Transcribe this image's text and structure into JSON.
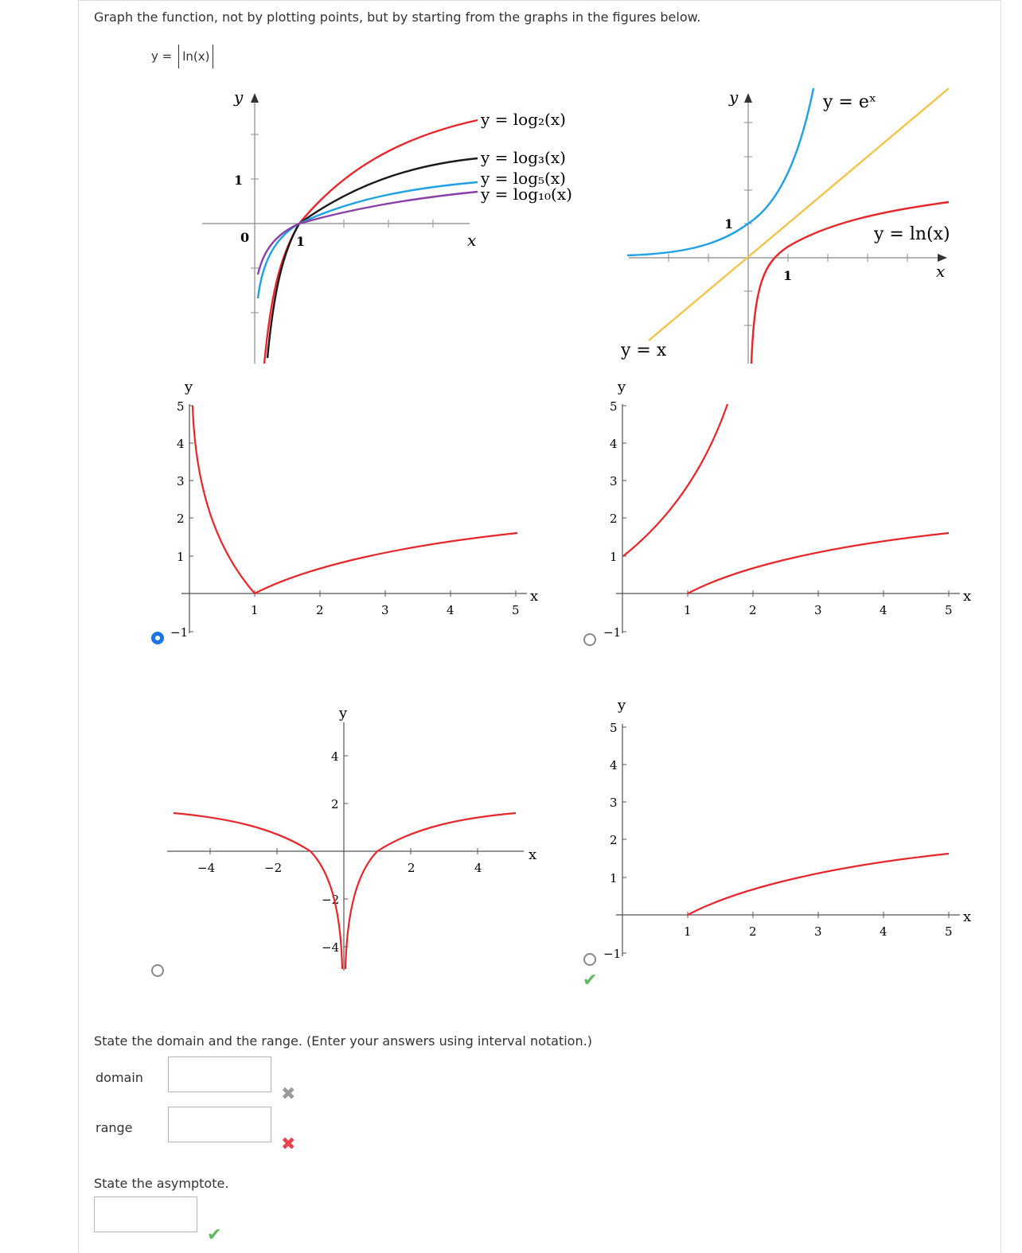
{
  "prompt": "Graph the function, not by plotting points, but by starting from the graphs in the figures below.",
  "function": {
    "lhs": "y =",
    "rhs": "ln(x)"
  },
  "ref_graphs": {
    "left": {
      "y_label": "y",
      "x_label": "x",
      "tick_one": "1",
      "tick_zero": "0",
      "tick_x_one": "1",
      "labels": [
        "y = log₂(x)",
        "y = log₃(x)",
        "y = log₅(x)",
        "y = log₁₀(x)"
      ],
      "colors": [
        "#e8262a",
        "#1a1a1a",
        "#1ea0e6",
        "#8a3fa8"
      ]
    },
    "right": {
      "y_label": "y",
      "x_label": "x",
      "tick_y_one": "1",
      "tick_x_one": "1",
      "label_exp": "y = eˣ",
      "label_ln": "y = ln(x)",
      "label_yx": "y = x",
      "colors": {
        "exp": "#1ea0e6",
        "ln": "#e8262a",
        "yx": "#f5c24a"
      }
    }
  },
  "options": [
    {
      "id": "A",
      "selected": true,
      "y_label": "y",
      "x_label": "x",
      "x_ticks": [
        "1",
        "2",
        "3",
        "4",
        "5"
      ],
      "y_ticks": [
        "5",
        "4",
        "3",
        "2",
        "1",
        "−1"
      ]
    },
    {
      "id": "B",
      "selected": false,
      "y_label": "y",
      "x_label": "x",
      "x_ticks": [
        "1",
        "2",
        "3",
        "4",
        "5"
      ],
      "y_ticks": [
        "5",
        "4",
        "3",
        "2",
        "1",
        "−1"
      ]
    },
    {
      "id": "C",
      "selected": false,
      "y_label": "y",
      "x_label": "x",
      "x_ticks": [
        "−4",
        "−2",
        "2",
        "4"
      ],
      "y_ticks": [
        "4",
        "2",
        "−2",
        "−4"
      ]
    },
    {
      "id": "D",
      "selected": false,
      "correct_mark": "✔",
      "y_label": "y",
      "x_label": "x",
      "x_ticks": [
        "1",
        "2",
        "3",
        "4",
        "5"
      ],
      "y_ticks": [
        "5",
        "4",
        "3",
        "2",
        "1",
        "−1"
      ]
    }
  ],
  "domain_range_prompt": "State the domain and the range. (Enter your answers using interval notation.)",
  "domain": {
    "label": "domain",
    "value": "",
    "mark": "✖"
  },
  "range": {
    "label": "range",
    "value": "",
    "mark": "✖"
  },
  "asymptote_prompt": "State the asymptote.",
  "asymptote": {
    "value": "",
    "mark": "✔"
  }
}
